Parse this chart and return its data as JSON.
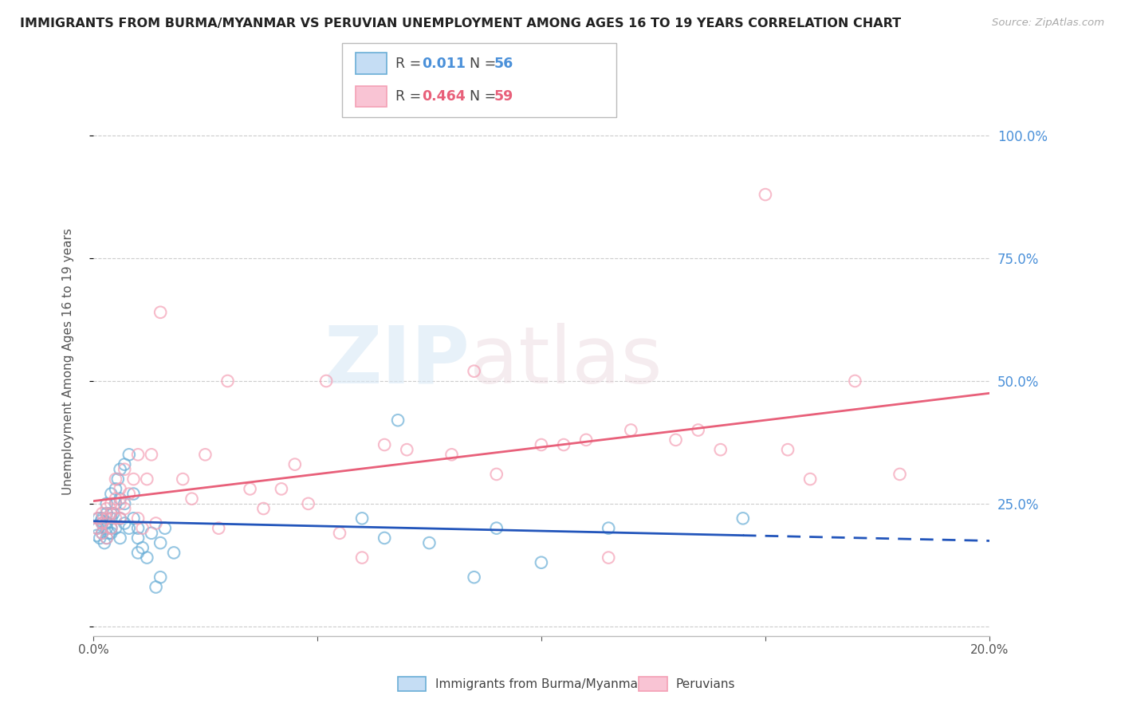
{
  "title": "IMMIGRANTS FROM BURMA/MYANMAR VS PERUVIAN UNEMPLOYMENT AMONG AGES 16 TO 19 YEARS CORRELATION CHART",
  "source": "Source: ZipAtlas.com",
  "ylabel": "Unemployment Among Ages 16 to 19 years",
  "xlim": [
    0.0,
    0.2
  ],
  "ylim": [
    -0.02,
    1.1
  ],
  "yticks": [
    0.0,
    0.25,
    0.5,
    0.75,
    1.0
  ],
  "ytick_labels": [
    "",
    "25.0%",
    "50.0%",
    "75.0%",
    "100.0%"
  ],
  "xticks": [
    0.0,
    0.05,
    0.1,
    0.15,
    0.2
  ],
  "xtick_labels": [
    "0.0%",
    "",
    "",
    "",
    "20.0%"
  ],
  "series1_color": "#6aaed6",
  "series2_color": "#f4a0b5",
  "series1_label": "Immigrants from Burma/Myanmar",
  "series2_label": "Peruvians",
  "R1": "0.011",
  "N1": "56",
  "R2": "0.464",
  "N2": "59",
  "series1_x": [
    0.0008,
    0.001,
    0.0012,
    0.0015,
    0.0018,
    0.002,
    0.002,
    0.002,
    0.0025,
    0.003,
    0.003,
    0.003,
    0.003,
    0.003,
    0.0035,
    0.004,
    0.004,
    0.004,
    0.004,
    0.004,
    0.0045,
    0.005,
    0.005,
    0.005,
    0.0055,
    0.006,
    0.006,
    0.006,
    0.006,
    0.007,
    0.007,
    0.007,
    0.008,
    0.008,
    0.009,
    0.009,
    0.01,
    0.01,
    0.01,
    0.011,
    0.012,
    0.013,
    0.014,
    0.015,
    0.015,
    0.016,
    0.018,
    0.06,
    0.065,
    0.068,
    0.075,
    0.085,
    0.09,
    0.1,
    0.115,
    0.145
  ],
  "series1_y": [
    0.185,
    0.2,
    0.22,
    0.18,
    0.215,
    0.21,
    0.19,
    0.22,
    0.17,
    0.2,
    0.23,
    0.21,
    0.18,
    0.25,
    0.19,
    0.22,
    0.2,
    0.27,
    0.23,
    0.19,
    0.23,
    0.28,
    0.25,
    0.2,
    0.3,
    0.22,
    0.26,
    0.32,
    0.18,
    0.33,
    0.25,
    0.21,
    0.35,
    0.2,
    0.22,
    0.27,
    0.2,
    0.18,
    0.15,
    0.16,
    0.14,
    0.19,
    0.08,
    0.17,
    0.1,
    0.2,
    0.15,
    0.22,
    0.18,
    0.42,
    0.17,
    0.1,
    0.2,
    0.13,
    0.2,
    0.22
  ],
  "series2_x": [
    0.0008,
    0.001,
    0.002,
    0.002,
    0.002,
    0.003,
    0.003,
    0.003,
    0.004,
    0.004,
    0.004,
    0.005,
    0.005,
    0.005,
    0.006,
    0.006,
    0.006,
    0.007,
    0.007,
    0.008,
    0.009,
    0.01,
    0.01,
    0.011,
    0.012,
    0.013,
    0.014,
    0.015,
    0.02,
    0.022,
    0.025,
    0.028,
    0.03,
    0.035,
    0.038,
    0.042,
    0.045,
    0.048,
    0.052,
    0.055,
    0.06,
    0.065,
    0.07,
    0.08,
    0.085,
    0.09,
    0.1,
    0.105,
    0.11,
    0.115,
    0.12,
    0.13,
    0.135,
    0.14,
    0.15,
    0.155,
    0.16,
    0.17,
    0.18
  ],
  "series2_y": [
    0.2,
    0.22,
    0.21,
    0.23,
    0.19,
    0.24,
    0.22,
    0.18,
    0.25,
    0.23,
    0.2,
    0.26,
    0.22,
    0.3,
    0.25,
    0.28,
    0.22,
    0.32,
    0.24,
    0.27,
    0.3,
    0.35,
    0.22,
    0.2,
    0.3,
    0.35,
    0.21,
    0.64,
    0.3,
    0.26,
    0.35,
    0.2,
    0.5,
    0.28,
    0.24,
    0.28,
    0.33,
    0.25,
    0.5,
    0.19,
    0.14,
    0.37,
    0.36,
    0.35,
    0.52,
    0.31,
    0.37,
    0.37,
    0.38,
    0.14,
    0.4,
    0.38,
    0.4,
    0.36,
    0.88,
    0.36,
    0.3,
    0.5,
    0.31
  ],
  "background_color": "#ffffff",
  "grid_color": "#cccccc",
  "watermark_text": "ZIPatlas",
  "line1_color": "#2255bb",
  "line2_color": "#e8607a",
  "legend_R1_color": "#4a90d9",
  "legend_R2_color": "#e8607a"
}
